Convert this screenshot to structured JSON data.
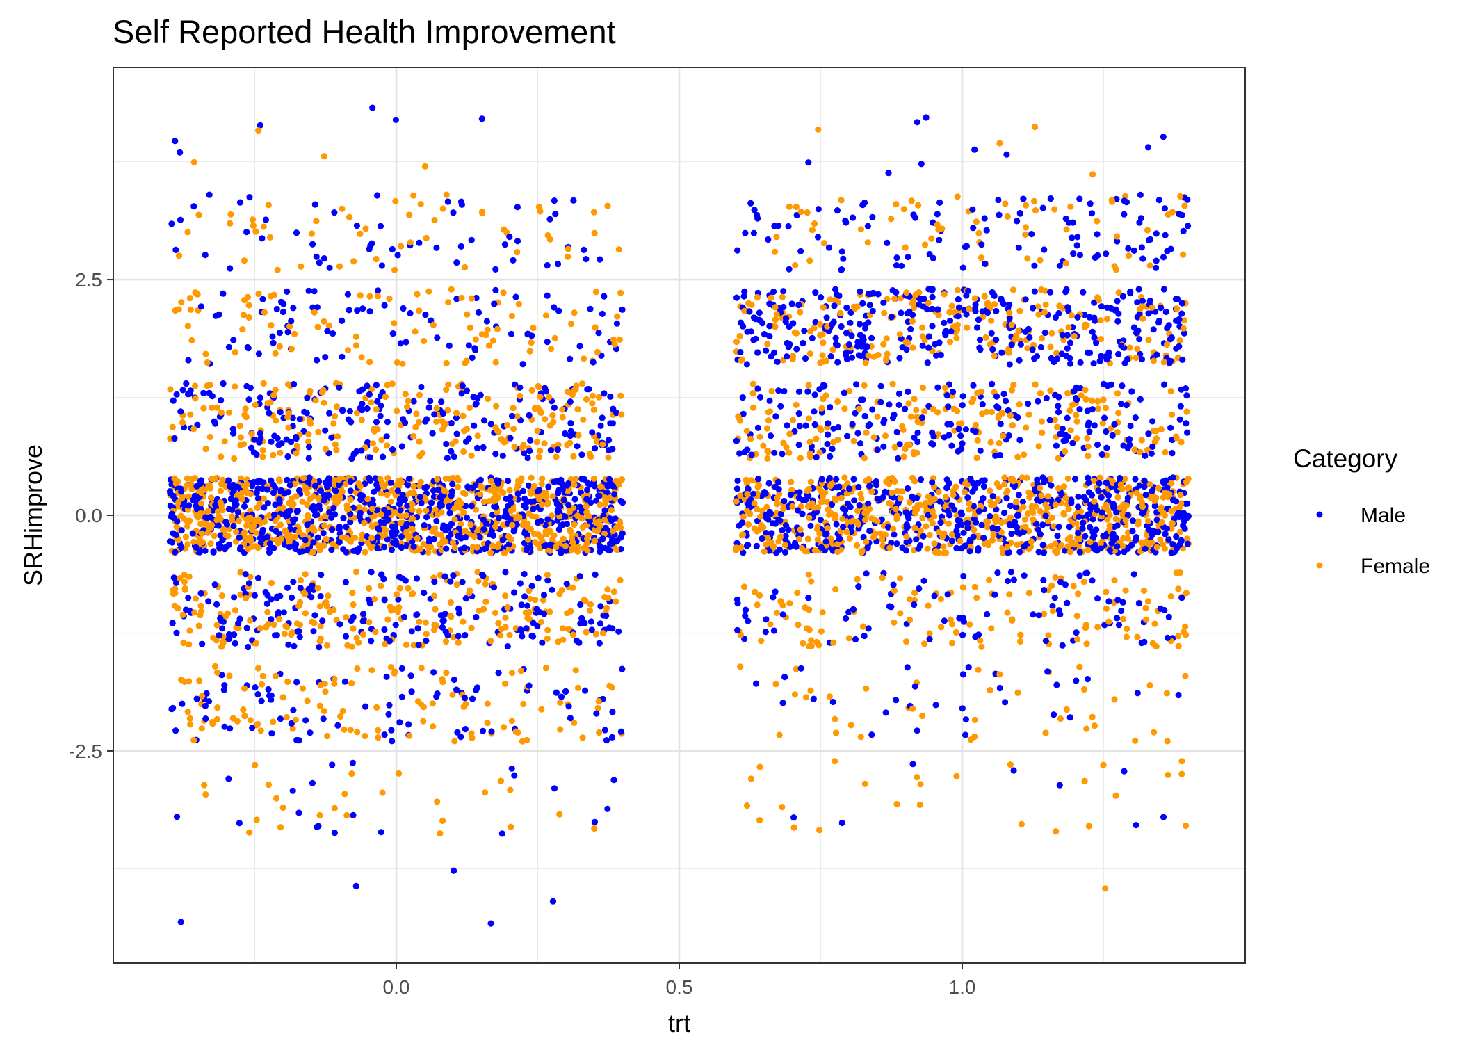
{
  "chart_data": {
    "type": "scatter",
    "title": "Self Reported Health Improvement",
    "xlabel": "trt",
    "ylabel": "SRHimprove",
    "xlim": [
      -0.5,
      1.5
    ],
    "ylim": [
      -4.75,
      4.75
    ],
    "x_ticks": [
      0.0,
      0.5,
      1.0
    ],
    "x_tick_labels": [
      "0.0",
      "0.5",
      "1.0"
    ],
    "y_ticks": [
      -2.5,
      0.0,
      2.5
    ],
    "y_tick_labels": [
      "-2.5",
      "0.0",
      "2.5"
    ],
    "grid": true,
    "legend": {
      "title": "Category",
      "position": "right"
    },
    "jitter": {
      "x": 0.4,
      "y": 0.4
    },
    "series": [
      {
        "name": "Male",
        "color": "#0000ff",
        "groups": [
          {
            "x": 0,
            "y": 4,
            "count": 6
          },
          {
            "x": 0,
            "y": 3,
            "count": 55
          },
          {
            "x": 0,
            "y": 2,
            "count": 85
          },
          {
            "x": 0,
            "y": 1,
            "count": 200
          },
          {
            "x": 0,
            "y": 0,
            "count": 720
          },
          {
            "x": 0,
            "y": -1,
            "count": 190
          },
          {
            "x": 0,
            "y": -2,
            "count": 90
          },
          {
            "x": 0,
            "y": -3,
            "count": 20
          },
          {
            "x": 0,
            "y": -4,
            "count": 5
          },
          {
            "x": 1,
            "y": 4,
            "count": 9
          },
          {
            "x": 1,
            "y": 3,
            "count": 110
          },
          {
            "x": 1,
            "y": 2,
            "count": 330
          },
          {
            "x": 1,
            "y": 1,
            "count": 200
          },
          {
            "x": 1,
            "y": 0,
            "count": 560
          },
          {
            "x": 1,
            "y": -1,
            "count": 90
          },
          {
            "x": 1,
            "y": -2,
            "count": 30
          },
          {
            "x": 1,
            "y": -3,
            "count": 8
          }
        ]
      },
      {
        "name": "Female",
        "color": "#ff9900",
        "groups": [
          {
            "x": 0,
            "y": 4,
            "count": 4
          },
          {
            "x": 0,
            "y": 3,
            "count": 50
          },
          {
            "x": 0,
            "y": 2,
            "count": 90
          },
          {
            "x": 0,
            "y": 1,
            "count": 210
          },
          {
            "x": 0,
            "y": 0,
            "count": 760
          },
          {
            "x": 0,
            "y": -1,
            "count": 210
          },
          {
            "x": 0,
            "y": -2,
            "count": 110
          },
          {
            "x": 0,
            "y": -3,
            "count": 25
          },
          {
            "x": 1,
            "y": 4,
            "count": 4
          },
          {
            "x": 1,
            "y": 3,
            "count": 60
          },
          {
            "x": 1,
            "y": 2,
            "count": 200
          },
          {
            "x": 1,
            "y": 1,
            "count": 180
          },
          {
            "x": 1,
            "y": 0,
            "count": 560
          },
          {
            "x": 1,
            "y": -1,
            "count": 120
          },
          {
            "x": 1,
            "y": -2,
            "count": 40
          },
          {
            "x": 1,
            "y": -3,
            "count": 25
          },
          {
            "x": 1,
            "y": -4,
            "count": 1
          }
        ]
      }
    ]
  }
}
